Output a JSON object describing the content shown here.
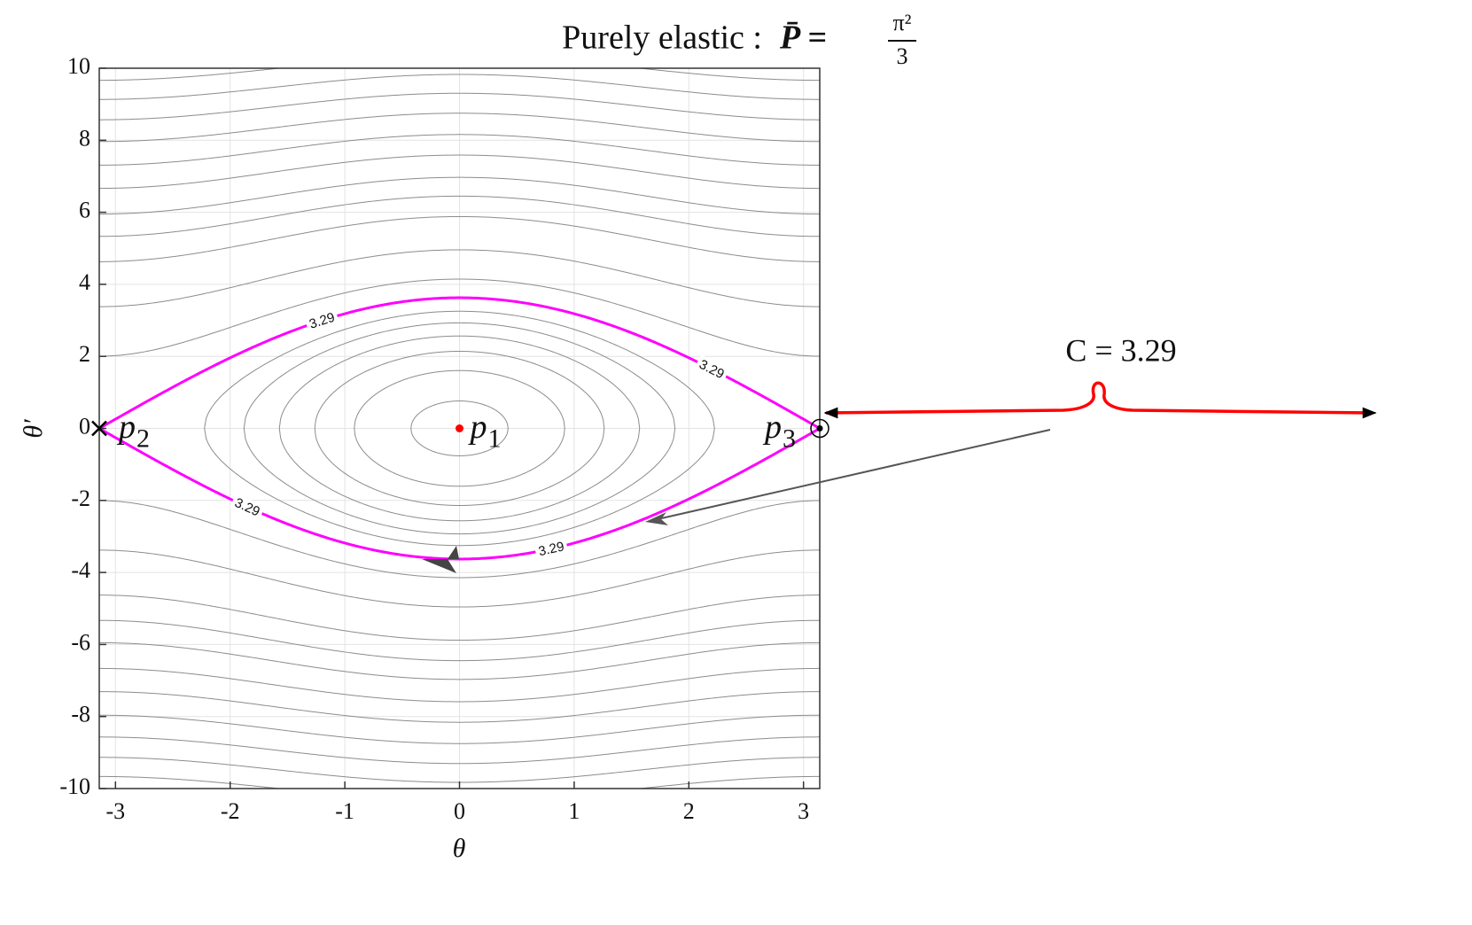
{
  "chart_data": {
    "type": "contour",
    "title": "Purely elastic :",
    "title_math": "P̄ =",
    "title_numerator": "π²",
    "title_denominator": "3",
    "x_label": "θ",
    "y_label": "θ′",
    "xlim": [
      -3.1416,
      3.1416
    ],
    "ylim": [
      -10,
      10
    ],
    "xticks": [
      -3,
      -2,
      -1,
      0,
      1,
      2,
      3
    ],
    "yticks": [
      -10,
      -8,
      -6,
      -4,
      -2,
      0,
      2,
      4,
      6,
      8,
      10
    ],
    "grid": true,
    "levels": [
      -3,
      -2,
      -1,
      0,
      1,
      2,
      5.3,
      9,
      14,
      17.5,
      21,
      25.5,
      30,
      35,
      40,
      45,
      50
    ],
    "level_color": "#8c8c8c",
    "separatrix": {
      "level": 3.29,
      "color": "#ff00ff"
    },
    "points": [
      {
        "name": "p",
        "subscript": "1",
        "x": 0,
        "y": 0,
        "marker": "dot",
        "color": "#ff0000"
      },
      {
        "name": "p",
        "subscript": "2",
        "x": -3.1416,
        "y": 0,
        "marker": "x",
        "color": "#000000"
      },
      {
        "name": "p",
        "subscript": "3",
        "x": 3.1416,
        "y": 0,
        "marker": "circled-dot",
        "color": "#000000"
      }
    ],
    "annotation": "C = 3.29"
  }
}
